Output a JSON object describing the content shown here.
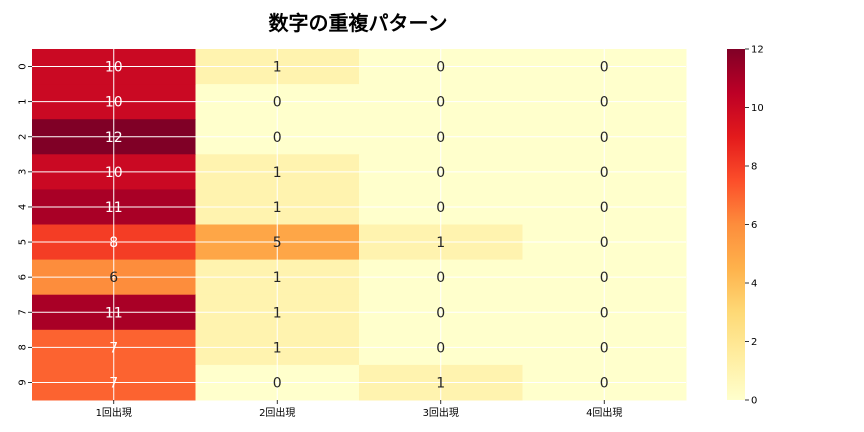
{
  "chart_data": {
    "type": "heatmap",
    "title": "数字の重複パターン",
    "xlabel": "",
    "ylabel": "",
    "x_categories": [
      "1回出現",
      "2回出現",
      "3回出現",
      "4回出現"
    ],
    "y_categories": [
      "0",
      "1",
      "2",
      "3",
      "4",
      "5",
      "6",
      "7",
      "8",
      "9"
    ],
    "values": [
      [
        10,
        1,
        0,
        0
      ],
      [
        10,
        0,
        0,
        0
      ],
      [
        12,
        0,
        0,
        0
      ],
      [
        10,
        1,
        0,
        0
      ],
      [
        11,
        1,
        0,
        0
      ],
      [
        8,
        5,
        1,
        0
      ],
      [
        6,
        1,
        0,
        0
      ],
      [
        11,
        1,
        0,
        0
      ],
      [
        7,
        1,
        0,
        0
      ],
      [
        7,
        0,
        1,
        0
      ]
    ],
    "vmin": 0,
    "vmax": 12,
    "colormap": "YlOrRd",
    "colorbar_ticks": [
      "0",
      "2",
      "4",
      "6",
      "8",
      "10",
      "12"
    ],
    "grid": true,
    "annotations": true
  }
}
